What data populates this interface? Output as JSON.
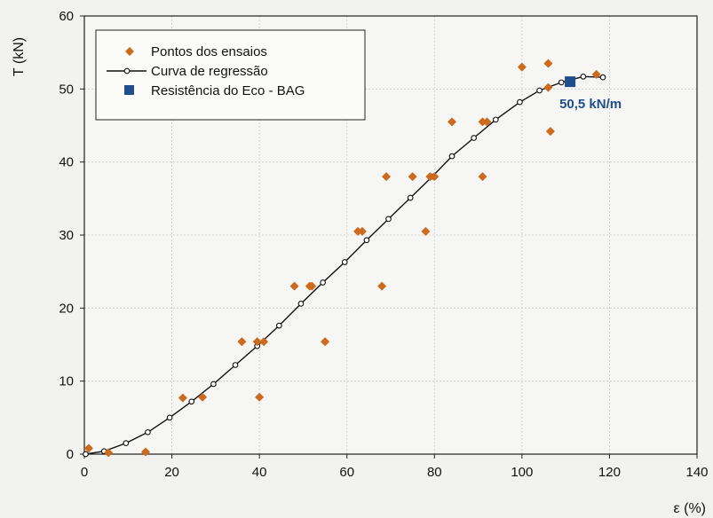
{
  "chart_data": {
    "type": "scatter",
    "xlabel": "ε (%)",
    "ylabel": "T (kN)",
    "xlim": [
      0,
      140
    ],
    "ylim": [
      0,
      60
    ],
    "x_ticks": [
      0,
      20,
      40,
      60,
      80,
      100,
      120,
      140
    ],
    "y_ticks": [
      0,
      10,
      20,
      30,
      40,
      50,
      60
    ],
    "grid": true,
    "legend_position": "top-left",
    "series": [
      {
        "name": "Pontos dos ensaios",
        "kind": "scatter",
        "color": "#cc6a1e",
        "marker": "diamond",
        "points": [
          [
            1,
            0.8
          ],
          [
            5.5,
            0.2
          ],
          [
            14,
            0.3
          ],
          [
            22.5,
            7.7
          ],
          [
            27,
            7.8
          ],
          [
            36,
            15.4
          ],
          [
            39.5,
            15.4
          ],
          [
            41,
            15.4
          ],
          [
            40,
            7.8
          ],
          [
            48,
            23
          ],
          [
            51.5,
            23
          ],
          [
            52,
            23
          ],
          [
            55,
            15.4
          ],
          [
            62.5,
            30.5
          ],
          [
            63.5,
            30.5
          ],
          [
            68,
            23
          ],
          [
            69,
            38
          ],
          [
            75,
            38
          ],
          [
            78,
            30.5
          ],
          [
            79,
            38
          ],
          [
            80,
            38
          ],
          [
            84,
            45.5
          ],
          [
            91,
            45.5
          ],
          [
            92,
            45.5
          ],
          [
            91,
            38
          ],
          [
            100,
            53
          ],
          [
            106,
            53.5
          ],
          [
            106,
            50.2
          ],
          [
            106.5,
            44.2
          ],
          [
            117,
            52
          ]
        ]
      },
      {
        "name": "Curva de regressão",
        "kind": "line",
        "color": "#111111",
        "marker": "open-circle",
        "points": [
          [
            0.3,
            0
          ],
          [
            4.5,
            0.4
          ],
          [
            9.5,
            1.5
          ],
          [
            14.5,
            3
          ],
          [
            19.5,
            5
          ],
          [
            24.5,
            7.2
          ],
          [
            29.5,
            9.6
          ],
          [
            34.5,
            12.2
          ],
          [
            39.5,
            14.8
          ],
          [
            44.5,
            17.6
          ],
          [
            49.5,
            20.6
          ],
          [
            54.5,
            23.5
          ],
          [
            59.5,
            26.3
          ],
          [
            64.5,
            29.3
          ],
          [
            69.5,
            32.2
          ],
          [
            74.5,
            35.1
          ],
          [
            79.5,
            38
          ],
          [
            84,
            40.8
          ],
          [
            89,
            43.3
          ],
          [
            94,
            45.8
          ],
          [
            99.5,
            48.2
          ],
          [
            104,
            49.8
          ],
          [
            109,
            50.9
          ],
          [
            114,
            51.7
          ],
          [
            118.5,
            51.6
          ]
        ]
      },
      {
        "name": "Resistência do Eco - BAG",
        "kind": "scatter",
        "color": "#1f4e8c",
        "marker": "square",
        "points": [
          [
            111,
            51
          ]
        ]
      }
    ],
    "annotations": [
      {
        "text": "50,5 kN/m",
        "x": 111,
        "y": 51,
        "color": "#1f4e8c"
      }
    ]
  }
}
